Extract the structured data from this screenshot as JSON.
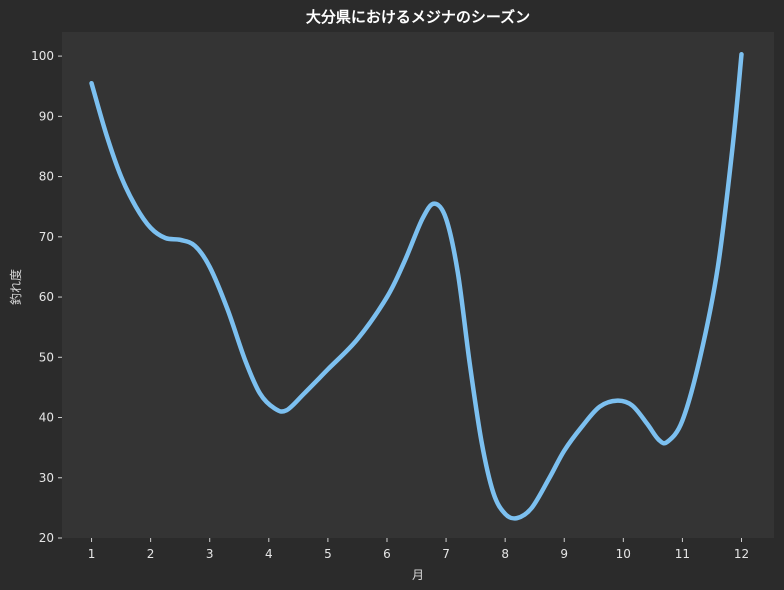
{
  "chart_data": {
    "type": "line",
    "title": "大分県におけるメジナのシーズン",
    "xlabel": "月",
    "ylabel": "釣れ度",
    "x": [
      1,
      2,
      3,
      4,
      5,
      6,
      7,
      8,
      9,
      10,
      11,
      12
    ],
    "x_tick_labels": [
      "1",
      "2",
      "3",
      "4",
      "5",
      "6",
      "7",
      "8",
      "9",
      "10",
      "11",
      "12"
    ],
    "y_ticks": [
      20,
      30,
      40,
      50,
      60,
      70,
      80,
      90,
      100
    ],
    "y_tick_labels": [
      "20",
      "30",
      "40",
      "50",
      "60",
      "70",
      "80",
      "90",
      "100"
    ],
    "xlim": [
      0.5,
      12.55
    ],
    "ylim": [
      20,
      104
    ],
    "grid": false,
    "series": [
      {
        "color": "#7cc0f0",
        "points": [
          [
            1,
            95.5
          ],
          [
            1.25,
            87
          ],
          [
            1.5,
            80
          ],
          [
            1.75,
            75
          ],
          [
            2,
            71.5
          ],
          [
            2.25,
            69.8
          ],
          [
            2.5,
            69.5
          ],
          [
            2.75,
            68.5
          ],
          [
            3,
            65
          ],
          [
            3.3,
            58
          ],
          [
            3.6,
            49.5
          ],
          [
            3.85,
            44
          ],
          [
            4.1,
            41.5
          ],
          [
            4.3,
            41.2
          ],
          [
            4.6,
            44
          ],
          [
            5,
            48
          ],
          [
            5.5,
            53
          ],
          [
            6,
            60
          ],
          [
            6.3,
            66
          ],
          [
            6.6,
            73
          ],
          [
            6.8,
            75.5
          ],
          [
            7,
            73
          ],
          [
            7.2,
            64
          ],
          [
            7.4,
            49
          ],
          [
            7.6,
            36
          ],
          [
            7.8,
            27.5
          ],
          [
            8,
            24
          ],
          [
            8.2,
            23.3
          ],
          [
            8.45,
            25
          ],
          [
            8.75,
            30
          ],
          [
            9,
            34.5
          ],
          [
            9.3,
            38.5
          ],
          [
            9.6,
            41.8
          ],
          [
            9.9,
            42.8
          ],
          [
            10.15,
            42
          ],
          [
            10.4,
            39
          ],
          [
            10.6,
            36.3
          ],
          [
            10.75,
            36
          ],
          [
            11,
            39.5
          ],
          [
            11.3,
            50
          ],
          [
            11.6,
            65
          ],
          [
            11.85,
            85
          ],
          [
            12,
            100.3
          ]
        ]
      }
    ],
    "colors": {
      "background": "#2b2b2b",
      "plot_area": "#343434",
      "line": "#7cc0f0",
      "text": "#e6e6e6"
    }
  }
}
